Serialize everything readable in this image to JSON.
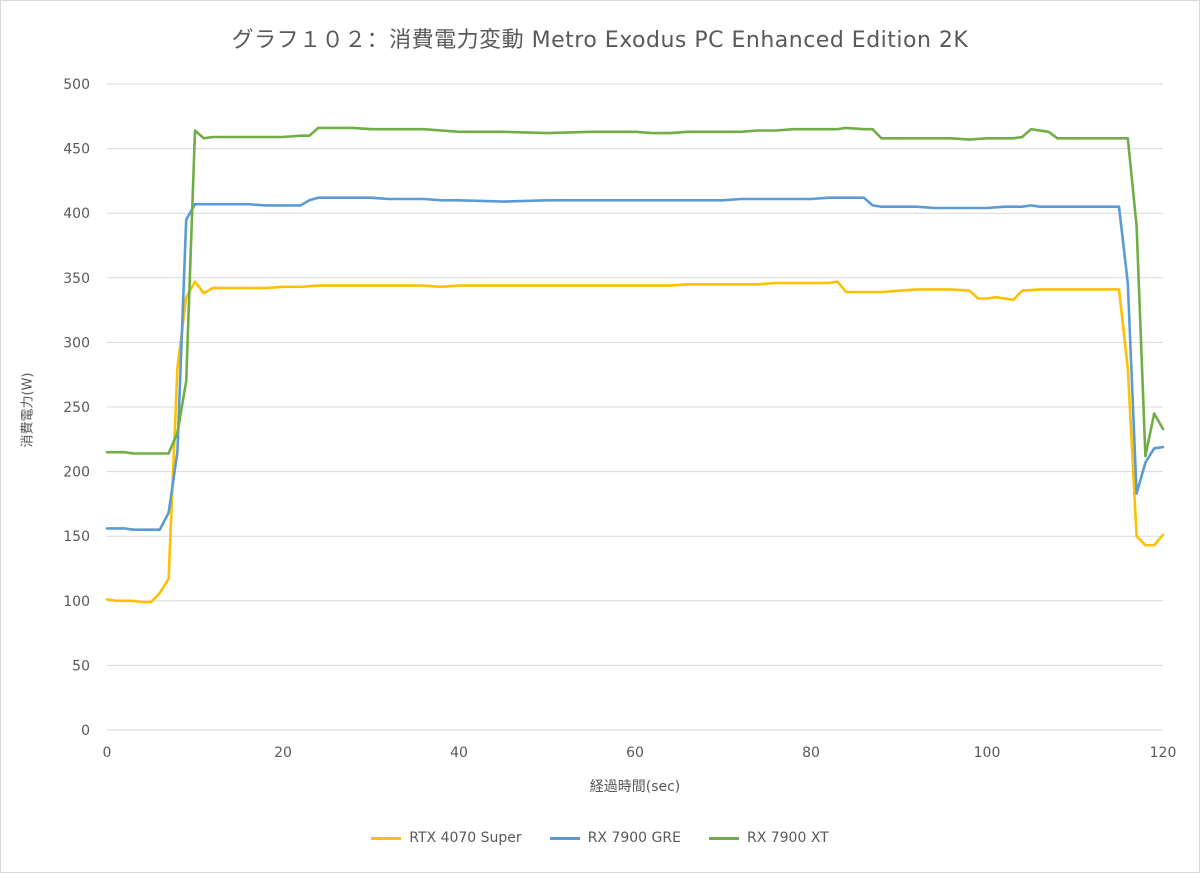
{
  "chart_data": {
    "type": "line",
    "title": "グラフ１０２：消費電力変動 Metro Exodus PC Enhanced Edition 2K",
    "xlabel": "経過時間(sec)",
    "ylabel": "消費電力(W)",
    "xlim": [
      0,
      120
    ],
    "ylim": [
      0,
      500
    ],
    "xticks": [
      0,
      20,
      40,
      60,
      80,
      100,
      120
    ],
    "yticks": [
      0,
      50,
      100,
      150,
      200,
      250,
      300,
      350,
      400,
      450,
      500
    ],
    "grid": "horizontal",
    "legend_position": "bottom",
    "series": [
      {
        "name": "RTX 4070 Super",
        "color": "#FFC000",
        "x": [
          0,
          1,
          2,
          3,
          4,
          5,
          6,
          7,
          8,
          9,
          10,
          11,
          12,
          14,
          16,
          18,
          20,
          22,
          24,
          26,
          28,
          30,
          32,
          34,
          36,
          38,
          40,
          45,
          50,
          55,
          60,
          62,
          64,
          66,
          68,
          70,
          72,
          74,
          76,
          78,
          80,
          82,
          83,
          84,
          86,
          88,
          90,
          92,
          94,
          96,
          98,
          99,
          100,
          101,
          102,
          103,
          104,
          106,
          108,
          110,
          112,
          114,
          115,
          116,
          117,
          118,
          119,
          120
        ],
        "values": [
          101,
          100,
          100,
          100,
          99,
          99,
          106,
          117,
          280,
          335,
          347,
          338,
          342,
          342,
          342,
          342,
          343,
          343,
          344,
          344,
          344,
          344,
          344,
          344,
          344,
          343,
          344,
          344,
          344,
          344,
          344,
          344,
          344,
          345,
          345,
          345,
          345,
          345,
          346,
          346,
          346,
          346,
          347,
          339,
          339,
          339,
          340,
          341,
          341,
          341,
          340,
          334,
          334,
          335,
          334,
          333,
          340,
          341,
          341,
          341,
          341,
          341,
          341,
          280,
          150,
          143,
          143,
          151
        ]
      },
      {
        "name": "RX 7900 GRE",
        "color": "#5B9BD5",
        "x": [
          0,
          1,
          2,
          3,
          4,
          5,
          6,
          7,
          8,
          9,
          10,
          11,
          12,
          14,
          16,
          18,
          20,
          22,
          23,
          24,
          25,
          26,
          28,
          30,
          32,
          34,
          36,
          38,
          40,
          45,
          50,
          55,
          60,
          62,
          64,
          66,
          68,
          70,
          72,
          74,
          76,
          78,
          80,
          82,
          84,
          85,
          86,
          87,
          88,
          90,
          92,
          94,
          96,
          98,
          100,
          102,
          104,
          105,
          106,
          108,
          110,
          112,
          114,
          115,
          116,
          117,
          118,
          119,
          120
        ],
        "values": [
          156,
          156,
          156,
          155,
          155,
          155,
          155,
          168,
          215,
          395,
          407,
          407,
          407,
          407,
          407,
          406,
          406,
          406,
          410,
          412,
          412,
          412,
          412,
          412,
          411,
          411,
          411,
          410,
          410,
          409,
          410,
          410,
          410,
          410,
          410,
          410,
          410,
          410,
          411,
          411,
          411,
          411,
          411,
          412,
          412,
          412,
          412,
          406,
          405,
          405,
          405,
          404,
          404,
          404,
          404,
          405,
          405,
          406,
          405,
          405,
          405,
          405,
          405,
          405,
          346,
          183,
          207,
          218,
          219
        ]
      },
      {
        "name": "RX 7900 XT",
        "color": "#70AD47",
        "x": [
          0,
          1,
          2,
          3,
          4,
          5,
          6,
          7,
          8,
          9,
          10,
          11,
          12,
          14,
          16,
          18,
          20,
          22,
          23,
          24,
          25,
          26,
          28,
          30,
          32,
          34,
          36,
          38,
          40,
          45,
          50,
          55,
          60,
          62,
          64,
          66,
          68,
          70,
          72,
          74,
          76,
          78,
          80,
          82,
          83,
          84,
          86,
          87,
          88,
          90,
          92,
          94,
          96,
          98,
          100,
          102,
          103,
          104,
          105,
          106,
          107,
          108,
          110,
          112,
          114,
          115,
          116,
          117,
          118,
          119,
          120
        ],
        "values": [
          215,
          215,
          215,
          214,
          214,
          214,
          214,
          214,
          230,
          270,
          464,
          458,
          459,
          459,
          459,
          459,
          459,
          460,
          460,
          466,
          466,
          466,
          466,
          465,
          465,
          465,
          465,
          464,
          463,
          463,
          462,
          463,
          463,
          462,
          462,
          463,
          463,
          463,
          463,
          464,
          464,
          465,
          465,
          465,
          465,
          466,
          465,
          465,
          458,
          458,
          458,
          458,
          458,
          457,
          458,
          458,
          458,
          459,
          465,
          464,
          463,
          458,
          458,
          458,
          458,
          458,
          458,
          390,
          212,
          245,
          233
        ]
      }
    ]
  }
}
